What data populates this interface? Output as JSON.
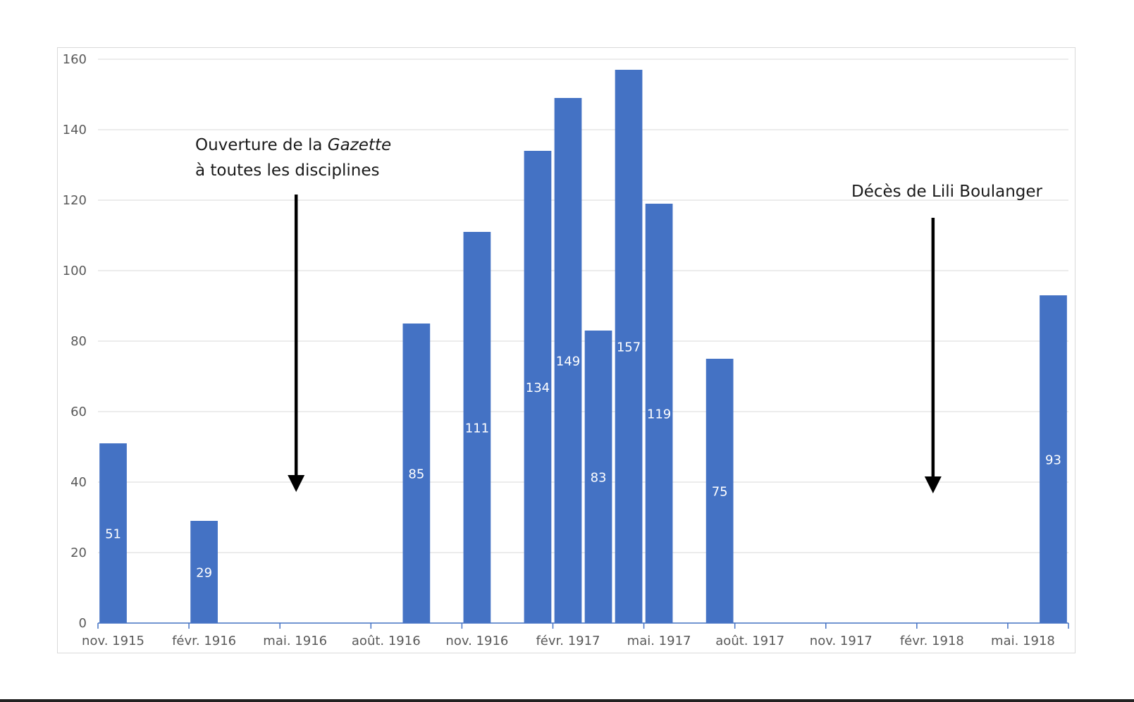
{
  "chart_data": {
    "type": "bar",
    "categories": [
      "nov. 1915",
      "déc. 1915",
      "janv. 1916",
      "févr. 1916",
      "mars 1916",
      "avr. 1916",
      "mai. 1916",
      "juin 1916",
      "juil. 1916",
      "août. 1916",
      "sept. 1916",
      "oct. 1916",
      "nov. 1916",
      "déc. 1916",
      "janv. 1917",
      "févr. 1917",
      "mars 1917",
      "avr. 1917",
      "mai. 1917",
      "juin 1917",
      "juil. 1917",
      "août. 1917",
      "sept. 1917",
      "oct. 1917",
      "nov. 1917",
      "déc. 1917",
      "janv. 1918",
      "févr. 1918",
      "mars 1918",
      "avr. 1918",
      "mai. 1918",
      "juin 1918"
    ],
    "x_tick_labels": [
      "nov. 1915",
      "févr. 1916",
      "mai. 1916",
      "août. 1916",
      "nov. 1916",
      "févr. 1917",
      "mai. 1917",
      "août. 1917",
      "nov. 1917",
      "févr. 1918",
      "mai. 1918"
    ],
    "values": [
      51,
      0,
      0,
      29,
      0,
      0,
      0,
      0,
      0,
      0,
      85,
      0,
      111,
      0,
      134,
      149,
      83,
      157,
      119,
      0,
      75,
      0,
      0,
      0,
      0,
      0,
      0,
      0,
      0,
      0,
      0,
      93
    ],
    "data_labels": [
      "51",
      "",
      "",
      "29",
      "",
      "",
      "",
      "",
      "",
      "",
      "85",
      "",
      "111",
      "",
      "134",
      "149",
      "83",
      "157",
      "119",
      "",
      "75",
      "",
      "",
      "",
      "",
      "",
      "",
      "",
      "",
      "",
      "",
      "93"
    ],
    "ylim": [
      0,
      160
    ],
    "y_ticks": [
      0,
      20,
      40,
      60,
      80,
      100,
      120,
      140,
      160
    ],
    "grid": true,
    "bar_color": "#4472C4",
    "axis_color": "#4472C4",
    "grid_color": "#d9d9d9",
    "annotations": [
      {
        "id": "gazette",
        "line1_prefix": "Ouverture de la ",
        "line1_italic": "Gazette",
        "line2": "à toutes les disciplines",
        "arrow_date": "mai. 1916"
      },
      {
        "id": "deces",
        "line1": "Décès de Lili Boulanger",
        "arrow_date": "févr. 1918"
      }
    ]
  }
}
